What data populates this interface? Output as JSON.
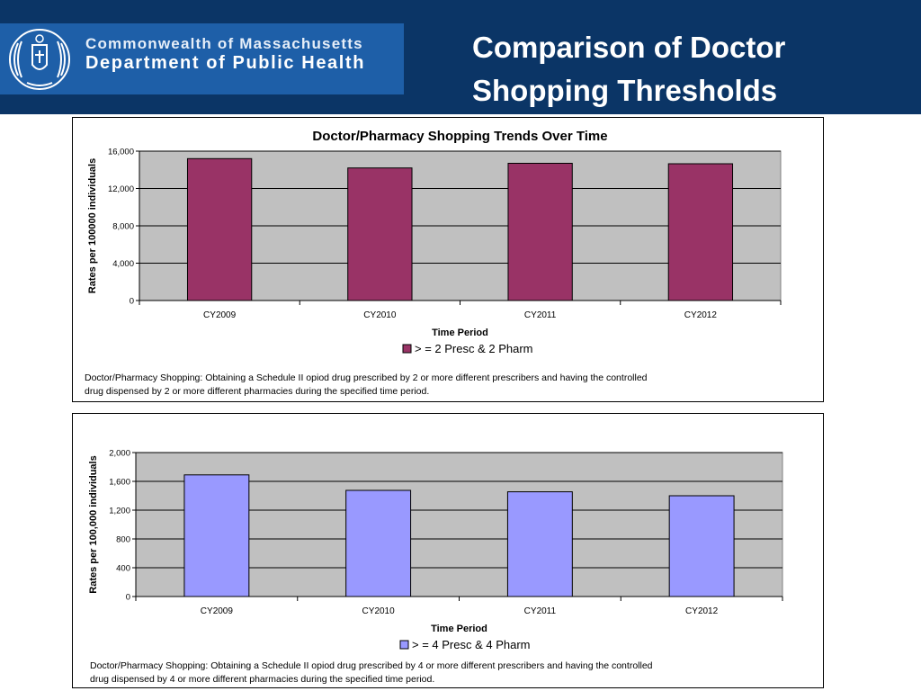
{
  "header": {
    "org_line1": "Commonwealth of Massachusetts",
    "org_line2": "Department of Public Health",
    "title": "Comparison of Doctor Shopping Thresholds"
  },
  "colors": {
    "header_bg": "#0b3566",
    "logo_bg": "#1e5fa8",
    "series1": "#993366",
    "series2": "#9999ff",
    "plot_bg": "#c0c0c0"
  },
  "chart_data": [
    {
      "type": "bar",
      "title": "Doctor/Pharmacy Shopping Trends Over Time",
      "xlabel": "Time Period",
      "ylabel": "Rates per 100000 individuals",
      "categories": [
        "CY2009",
        "CY2010",
        "CY2011",
        "CY2012"
      ],
      "series": [
        {
          "name": "> = 2 Presc & 2 Pharm",
          "values": [
            15200,
            14200,
            14700,
            14650
          ]
        }
      ],
      "ylim": [
        0,
        16000
      ],
      "yticks": [
        0,
        4000,
        8000,
        12000,
        16000
      ],
      "ytick_labels": [
        "0",
        "4,000",
        "8,000",
        "12,000",
        "16,000"
      ],
      "grid": true,
      "legend_position": "bottom",
      "footnote": "Doctor/Pharmacy Shopping: Obtaining a Schedule II opiod drug prescribed by 2 or more different prescribers and having the controlled drug dispensed by 2 or more different pharmacies during the specified time period."
    },
    {
      "type": "bar",
      "title": "",
      "xlabel": "Time Period",
      "ylabel": "Rates per 100,000 individuals",
      "categories": [
        "CY2009",
        "CY2010",
        "CY2011",
        "CY2012"
      ],
      "series": [
        {
          "name": "> = 4 Presc & 4 Pharm",
          "values": [
            1690,
            1475,
            1455,
            1400
          ]
        }
      ],
      "ylim": [
        0,
        2000
      ],
      "yticks": [
        0,
        400,
        800,
        1200,
        1600,
        2000
      ],
      "ytick_labels": [
        "0",
        "400",
        "800",
        "1,200",
        "1,600",
        "2,000"
      ],
      "grid": true,
      "legend_position": "bottom",
      "footnote": "Doctor/Pharmacy Shopping: Obtaining a Schedule II opiod drug prescribed by 4 or more different prescribers and having the controlled drug dispensed by 4 or more different pharmacies during the specified time period."
    }
  ]
}
